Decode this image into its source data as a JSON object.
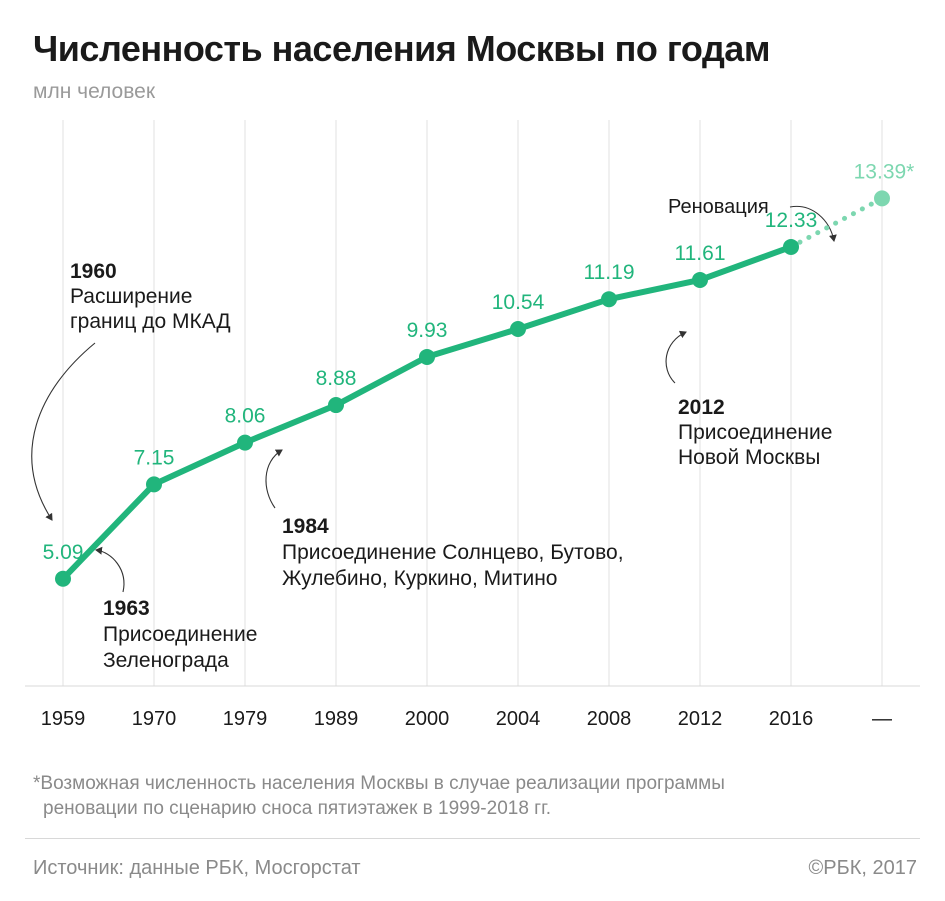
{
  "header": {
    "title": "Численность населения Москвы по годам",
    "subtitle": "млн человек"
  },
  "colors": {
    "line": "#21b57c",
    "forecast": "#7dd7b0",
    "text_dark": "#1a1a1a",
    "text_muted": "#8a8a8a",
    "grid": "#e2e2e2"
  },
  "chart_data": {
    "type": "line",
    "title": "Численность населения Москвы по годам",
    "ylabel": "млн человек",
    "categories": [
      "1959",
      "1970",
      "1979",
      "1989",
      "2000",
      "2004",
      "2008",
      "2012",
      "2016",
      "—"
    ],
    "series": [
      {
        "values": [
          5.09,
          7.15,
          8.06,
          8.88,
          9.93,
          10.54,
          11.19,
          11.61,
          12.33,
          null
        ],
        "labels": [
          "5.09",
          "7.15",
          "8.06",
          "8.88",
          "9.93",
          "10.54",
          "11.19",
          "11.61",
          "12.33",
          null
        ]
      },
      {
        "style": "dotted",
        "values": [
          null,
          null,
          null,
          null,
          null,
          null,
          null,
          null,
          12.33,
          13.39
        ],
        "labels": [
          null,
          null,
          null,
          null,
          null,
          null,
          null,
          null,
          null,
          "13.39*"
        ]
      }
    ],
    "ylim": [
      2.75,
      15.1
    ],
    "grid": "vertical",
    "annotations": [
      {
        "year": "1960",
        "lines": [
          "Расширение",
          "границ до МКАД"
        ]
      },
      {
        "year": "1963",
        "lines": [
          "Присоединение",
          "Зеленограда"
        ]
      },
      {
        "year": "1984",
        "lines": [
          "Присоединение Солнцево, Бутово,",
          "Жулебино, Куркино, Митино"
        ]
      },
      {
        "year": "2012",
        "lines": [
          "Присоединение",
          "Новой Москвы"
        ]
      },
      {
        "year": "",
        "lines": [
          "Реновация"
        ]
      }
    ]
  },
  "footnote": {
    "line1": "*Возможная численность населения Москвы в случае реализации программы",
    "line2": "реновации по сценарию сноса пятиэтажек в 1999-2018 гг."
  },
  "footer": {
    "source": "Источник: данные РБК, Мосгорстат",
    "copyright": "©РБК, 2017"
  }
}
